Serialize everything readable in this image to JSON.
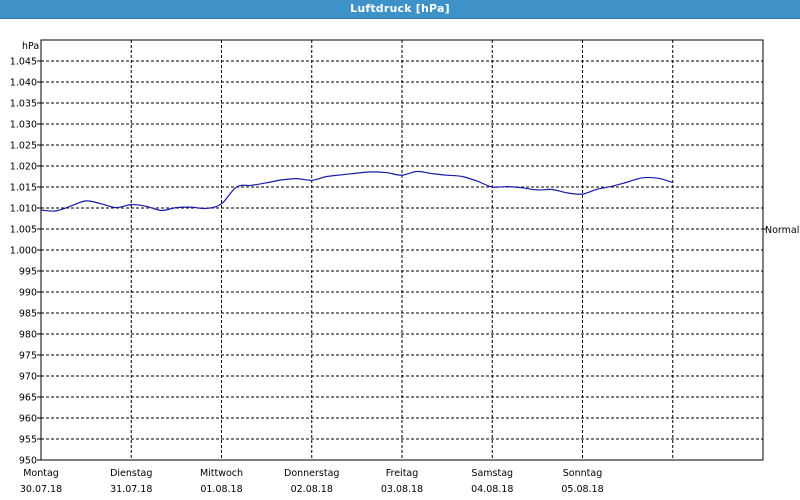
{
  "window": {
    "title": "Luftdruck [hPa]"
  },
  "colors": {
    "titlebar": "#3f92c7",
    "series": "#1a1aa6",
    "grid": "#000000"
  },
  "chart_data": {
    "type": "line",
    "title": "Luftdruck [hPa]",
    "ylabel": "hPa",
    "xlabel": "",
    "ylim": [
      950,
      1050
    ],
    "yticks": [
      950,
      955,
      960,
      965,
      970,
      975,
      980,
      985,
      990,
      995,
      1000,
      1005,
      1010,
      1015,
      1020,
      1025,
      1030,
      1035,
      1040,
      1045
    ],
    "ytick_labels": [
      "950",
      "955",
      "960",
      "965",
      "970",
      "975",
      "980",
      "985",
      "990",
      "995",
      "1.000",
      "1.005",
      "1.010",
      "1.015",
      "1.020",
      "1.025",
      "1.030",
      "1.035",
      "1.040",
      "1.045"
    ],
    "xlim": [
      "2018-07-30",
      "2018-08-06"
    ],
    "xticks": [
      {
        "day": "Montag",
        "date": "30.07.18"
      },
      {
        "day": "Dienstag",
        "date": "31.07.18"
      },
      {
        "day": "Mittwoch",
        "date": "01.08.18"
      },
      {
        "day": "Donnerstag",
        "date": "02.08.18"
      },
      {
        "day": "Freitag",
        "date": "03.08.18"
      },
      {
        "day": "Samstag",
        "date": "04.08.18"
      },
      {
        "day": "Sonntag",
        "date": "05.08.18"
      }
    ],
    "grid": true,
    "annotation": {
      "label": "Normal",
      "value": 1005
    },
    "series": [
      {
        "x": [
          "30.07.18 00:00",
          "30.07.18 04:00",
          "30.07.18 08:00",
          "30.07.18 12:00",
          "30.07.18 16:00",
          "30.07.18 20:00",
          "31.07.18 00:00",
          "31.07.18 04:00",
          "31.07.18 08:00",
          "31.07.18 12:00",
          "31.07.18 16:00",
          "31.07.18 20:00",
          "01.08.18 00:00",
          "01.08.18 04:00",
          "01.08.18 08:00",
          "01.08.18 12:00",
          "01.08.18 16:00",
          "01.08.18 20:00",
          "02.08.18 00:00",
          "02.08.18 04:00",
          "02.08.18 08:00",
          "02.08.18 12:00",
          "02.08.18 16:00",
          "02.08.18 20:00",
          "03.08.18 00:00",
          "03.08.18 04:00",
          "03.08.18 08:00",
          "03.08.18 12:00",
          "03.08.18 16:00",
          "03.08.18 20:00",
          "04.08.18 00:00",
          "04.08.18 04:00",
          "04.08.18 08:00",
          "04.08.18 12:00",
          "04.08.18 16:00",
          "04.08.18 20:00",
          "05.08.18 00:00",
          "05.08.18 04:00",
          "05.08.18 08:00",
          "05.08.18 12:00",
          "05.08.18 16:00",
          "05.08.18 20:00",
          "06.08.18 00:00"
        ],
        "values": [
          1009.5,
          1009.3,
          1010.5,
          1011.7,
          1011.0,
          1010.1,
          1010.8,
          1010.4,
          1009.4,
          1010.1,
          1010.2,
          1009.9,
          1011.0,
          1015.0,
          1015.4,
          1016.0,
          1016.7,
          1017.0,
          1016.6,
          1017.5,
          1017.9,
          1018.3,
          1018.6,
          1018.4,
          1017.8,
          1018.7,
          1018.2,
          1017.8,
          1017.5,
          1016.4,
          1015.0,
          1015.1,
          1014.8,
          1014.3,
          1014.4,
          1013.6,
          1013.3,
          1014.5,
          1015.2,
          1016.2,
          1017.2,
          1017.1,
          1016.1
        ]
      }
    ]
  }
}
